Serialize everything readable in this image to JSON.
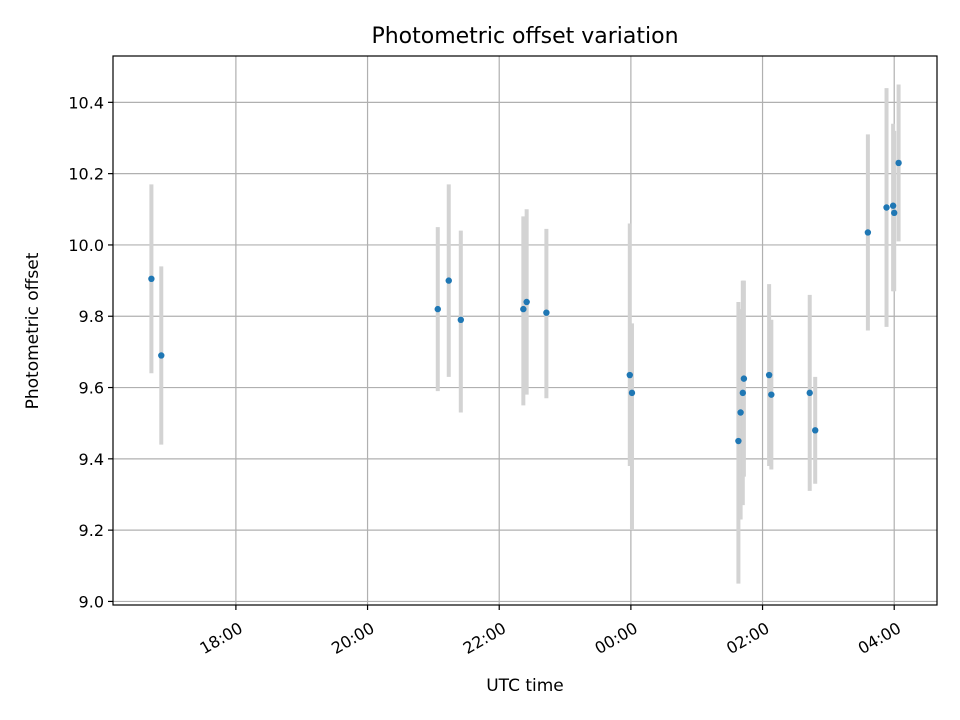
{
  "chart_data": {
    "type": "scatter",
    "title": "Photometric offset variation",
    "xlabel": "UTC time",
    "ylabel": "Photometric offset",
    "x_axis_type": "time",
    "xlim": [
      "16:08",
      "04:39"
    ],
    "ylim": [
      8.99,
      10.53
    ],
    "x_ticks": [
      "18:00",
      "20:00",
      "22:00",
      "00:00",
      "02:00",
      "04:00"
    ],
    "y_ticks": [
      "9.0",
      "9.2",
      "9.4",
      "9.6",
      "9.8",
      "10.0",
      "10.2",
      "10.4"
    ],
    "grid": true,
    "marker_color": "#1f77b4",
    "errorbar_color": "#d3d3d3",
    "points": [
      {
        "time": "16:43",
        "y": 9.905,
        "yerr_low": 9.64,
        "yerr_high": 10.17
      },
      {
        "time": "16:52",
        "y": 9.69,
        "yerr_low": 9.44,
        "yerr_high": 9.94
      },
      {
        "time": "21:04",
        "y": 9.82,
        "yerr_low": 9.59,
        "yerr_high": 10.05
      },
      {
        "time": "21:14",
        "y": 9.9,
        "yerr_low": 9.63,
        "yerr_high": 10.17
      },
      {
        "time": "21:25",
        "y": 9.79,
        "yerr_low": 9.53,
        "yerr_high": 10.04
      },
      {
        "time": "22:22",
        "y": 9.82,
        "yerr_low": 9.55,
        "yerr_high": 10.08
      },
      {
        "time": "22:25",
        "y": 9.84,
        "yerr_low": 9.58,
        "yerr_high": 10.1
      },
      {
        "time": "22:43",
        "y": 9.81,
        "yerr_low": 9.57,
        "yerr_high": 10.045
      },
      {
        "time": "23:59",
        "y": 9.635,
        "yerr_low": 9.38,
        "yerr_high": 10.06
      },
      {
        "time": "00:01",
        "y": 9.585,
        "yerr_low": 9.2,
        "yerr_high": 9.78
      },
      {
        "time": "01:38",
        "y": 9.45,
        "yerr_low": 9.05,
        "yerr_high": 9.84
      },
      {
        "time": "01:40",
        "y": 9.53,
        "yerr_low": 9.23,
        "yerr_high": 9.82
      },
      {
        "time": "01:42",
        "y": 9.585,
        "yerr_low": 9.27,
        "yerr_high": 9.9
      },
      {
        "time": "01:43",
        "y": 9.625,
        "yerr_low": 9.35,
        "yerr_high": 9.9
      },
      {
        "time": "02:06",
        "y": 9.635,
        "yerr_low": 9.38,
        "yerr_high": 9.89
      },
      {
        "time": "02:08",
        "y": 9.58,
        "yerr_low": 9.37,
        "yerr_high": 9.79
      },
      {
        "time": "02:43",
        "y": 9.585,
        "yerr_low": 9.31,
        "yerr_high": 9.86
      },
      {
        "time": "02:48",
        "y": 9.48,
        "yerr_low": 9.33,
        "yerr_high": 9.63
      },
      {
        "time": "03:36",
        "y": 10.035,
        "yerr_low": 9.76,
        "yerr_high": 10.31
      },
      {
        "time": "03:53",
        "y": 10.105,
        "yerr_low": 9.77,
        "yerr_high": 10.44
      },
      {
        "time": "03:59",
        "y": 10.11,
        "yerr_low": 9.87,
        "yerr_high": 10.34
      },
      {
        "time": "04:00",
        "y": 10.09,
        "yerr_low": 9.87,
        "yerr_high": 10.32
      },
      {
        "time": "04:04",
        "y": 10.23,
        "yerr_low": 10.01,
        "yerr_high": 10.45
      }
    ]
  }
}
